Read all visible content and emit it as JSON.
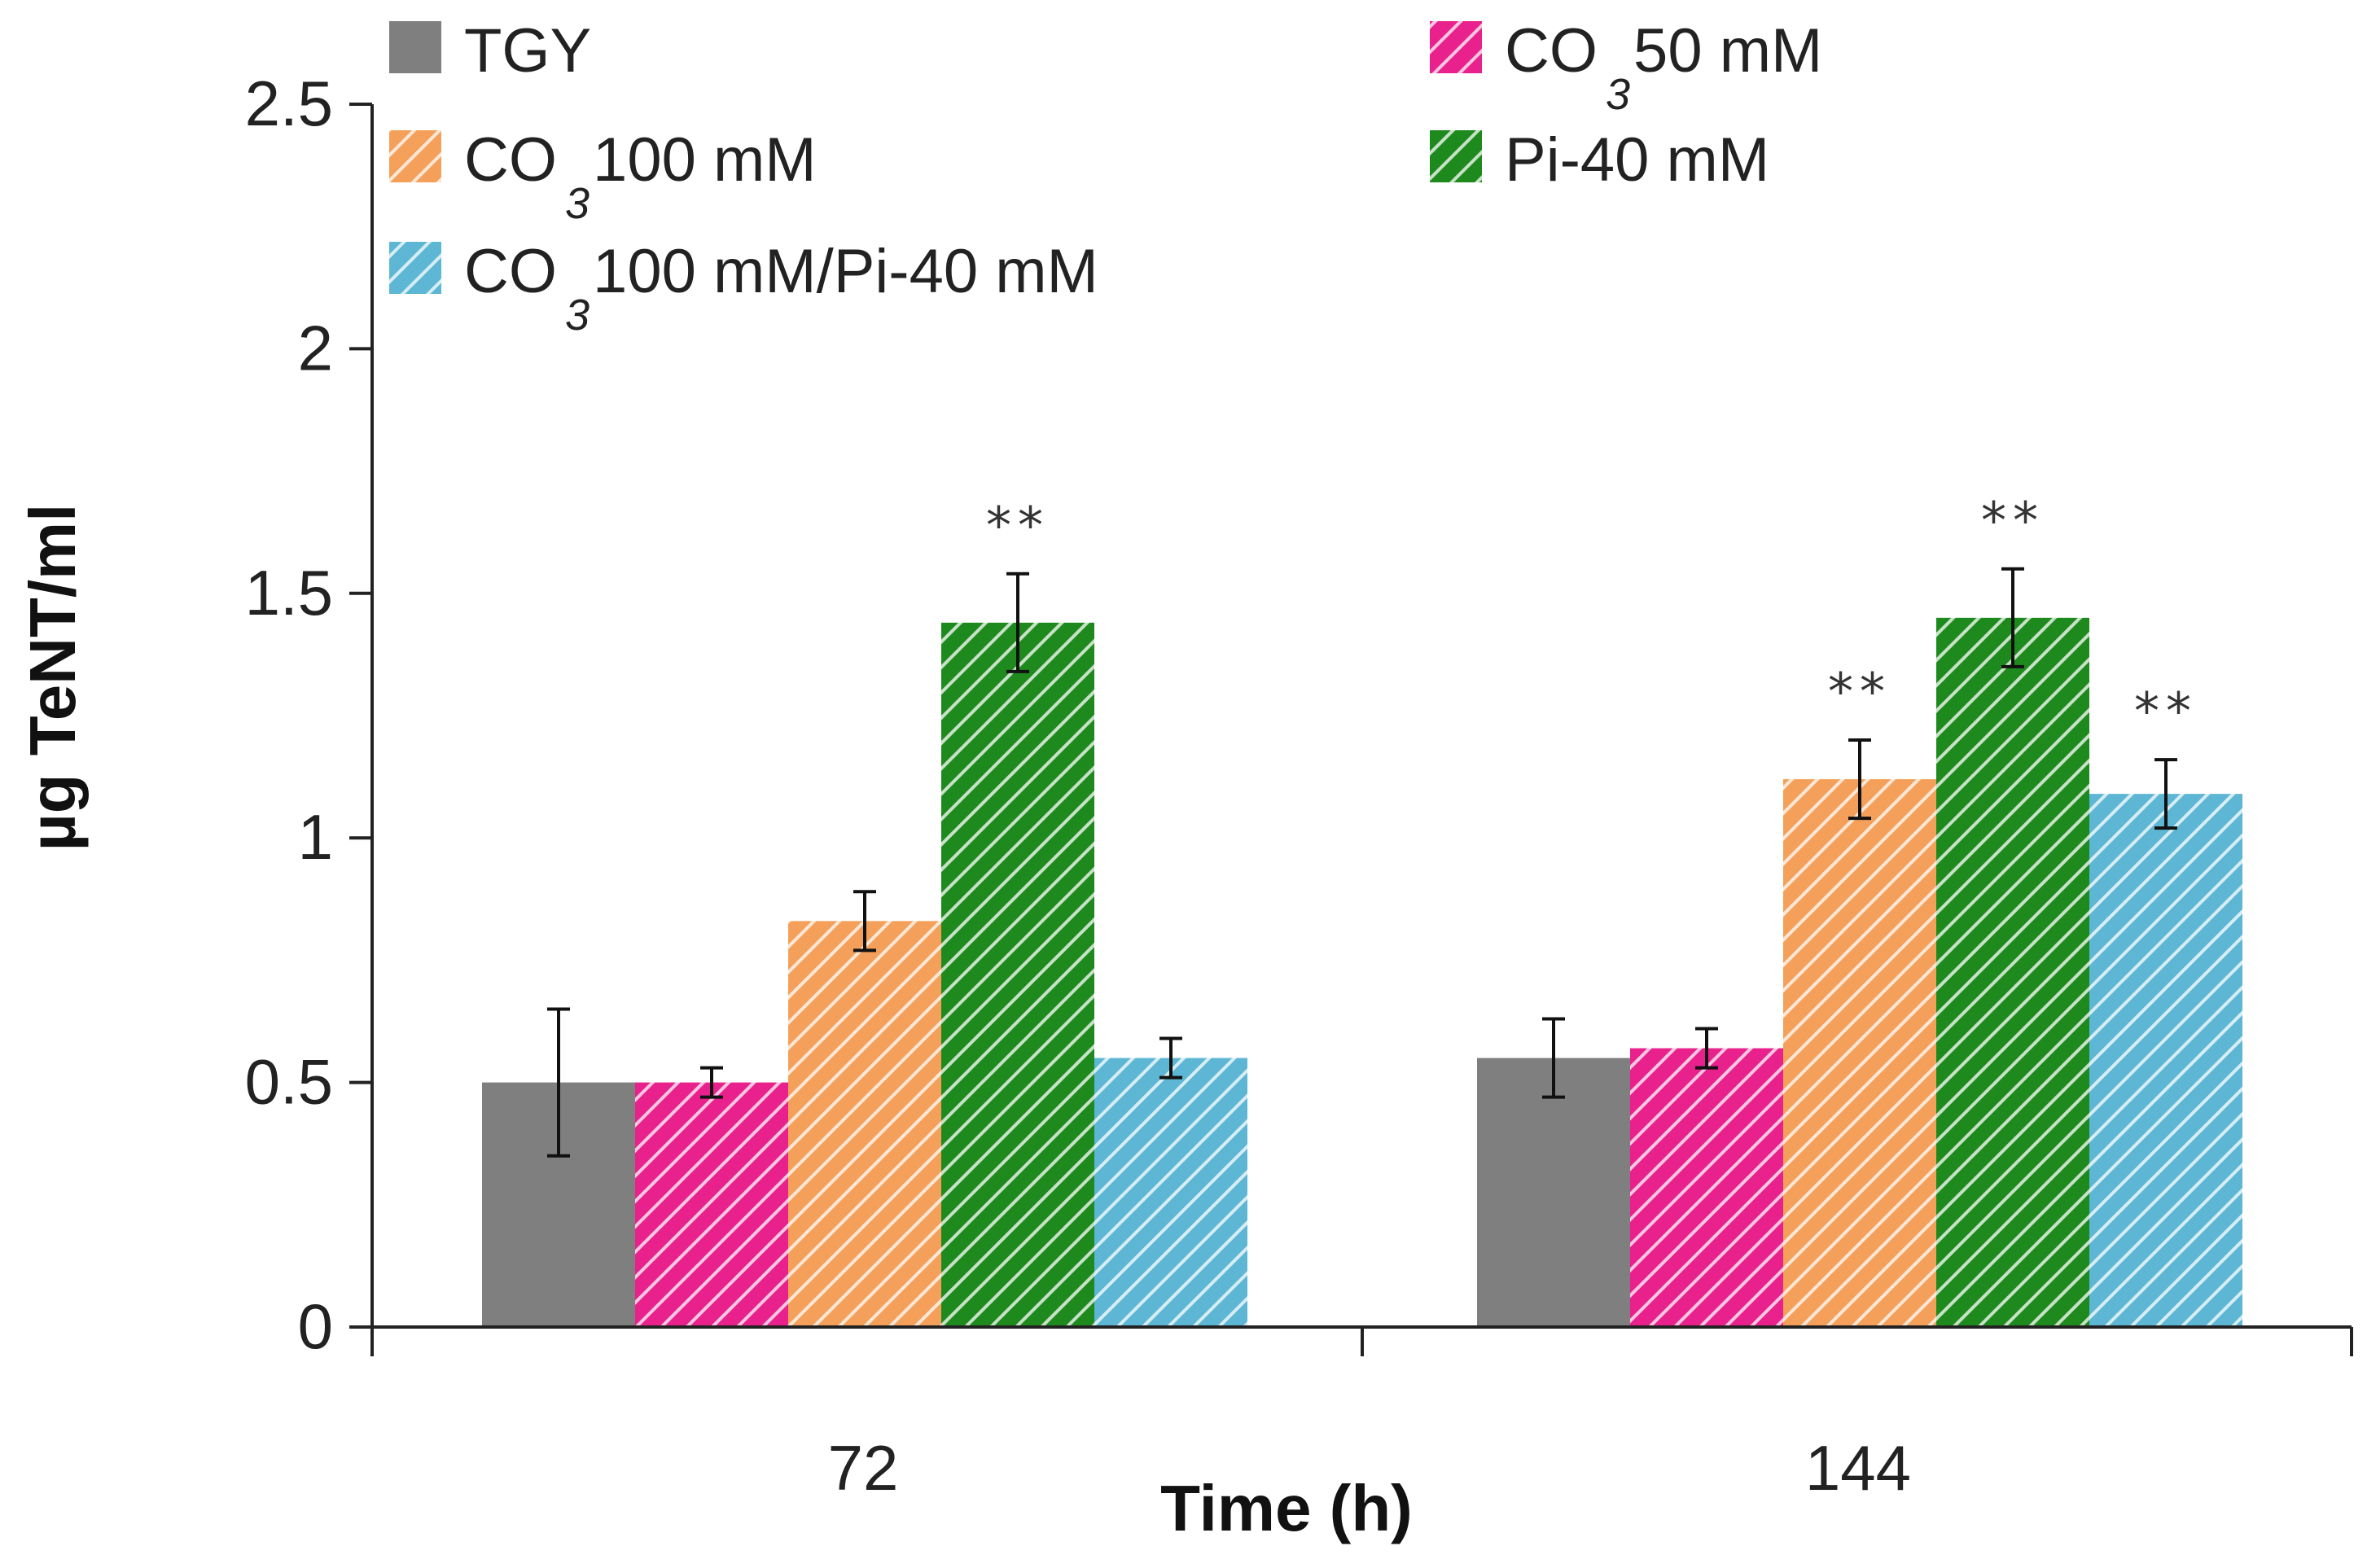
{
  "chart_data": {
    "type": "bar",
    "title": "",
    "xlabel": "Time (h)",
    "ylabel": "µg TeNT/ml",
    "categories": [
      "72",
      "144"
    ],
    "ylim": [
      0,
      2.5
    ],
    "yticks": [
      "0",
      "0.5",
      "1",
      "1.5",
      "2",
      "2.5"
    ],
    "grid": false,
    "legend_position": "top",
    "series": [
      {
        "name": "TGY",
        "legend": {
          "main": "TGY",
          "sub": "",
          "tail": ""
        },
        "values": [
          0.5,
          0.55
        ],
        "errors": [
          0.15,
          0.08
        ],
        "annotations": [
          "",
          ""
        ],
        "color": "#7f7f7f",
        "hatched": false
      },
      {
        "name": "CO3 50 mM",
        "legend": {
          "main": "CO",
          "sub": "3",
          "tail": "50 mM"
        },
        "values": [
          0.5,
          0.57
        ],
        "errors": [
          0.03,
          0.04
        ],
        "annotations": [
          "",
          ""
        ],
        "color": "#e8218c",
        "hatched": true
      },
      {
        "name": "CO3 100 mM",
        "legend": {
          "main": "CO",
          "sub": "3",
          "tail": "100 mM"
        },
        "values": [
          0.83,
          1.12
        ],
        "errors": [
          0.06,
          0.08
        ],
        "annotations": [
          "",
          "**"
        ],
        "color": "#f5a05a",
        "hatched": true
      },
      {
        "name": "Pi-40 mM",
        "legend": {
          "main": "Pi-40 mM",
          "sub": "",
          "tail": ""
        },
        "values": [
          1.44,
          1.45
        ],
        "errors": [
          0.1,
          0.1
        ],
        "annotations": [
          "**",
          "**"
        ],
        "color": "#1e8a1e",
        "hatched": true
      },
      {
        "name": "CO3 100 mM/Pi-40 mM",
        "legend": {
          "main": "CO",
          "sub": "3",
          "tail": "100 mM/Pi-40 mM"
        },
        "values": [
          0.55,
          1.09
        ],
        "errors": [
          0.04,
          0.07
        ],
        "annotations": [
          "",
          "**"
        ],
        "color": "#5cb6d4",
        "hatched": true
      }
    ]
  }
}
